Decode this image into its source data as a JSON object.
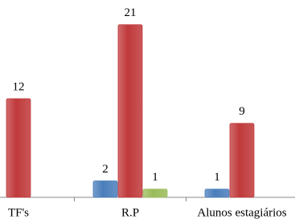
{
  "chart_data": {
    "type": "bar",
    "categories": [
      "TF's",
      "R.P",
      "Alunos estagiários"
    ],
    "series": [
      {
        "color": "#4a7ebb",
        "values": [
          null,
          2,
          1
        ]
      },
      {
        "color": "#c0393b",
        "values": [
          12,
          21,
          9
        ]
      },
      {
        "color": "#9bbb59",
        "values": [
          null,
          1,
          null
        ]
      }
    ],
    "ylim": [
      0,
      24
    ]
  }
}
